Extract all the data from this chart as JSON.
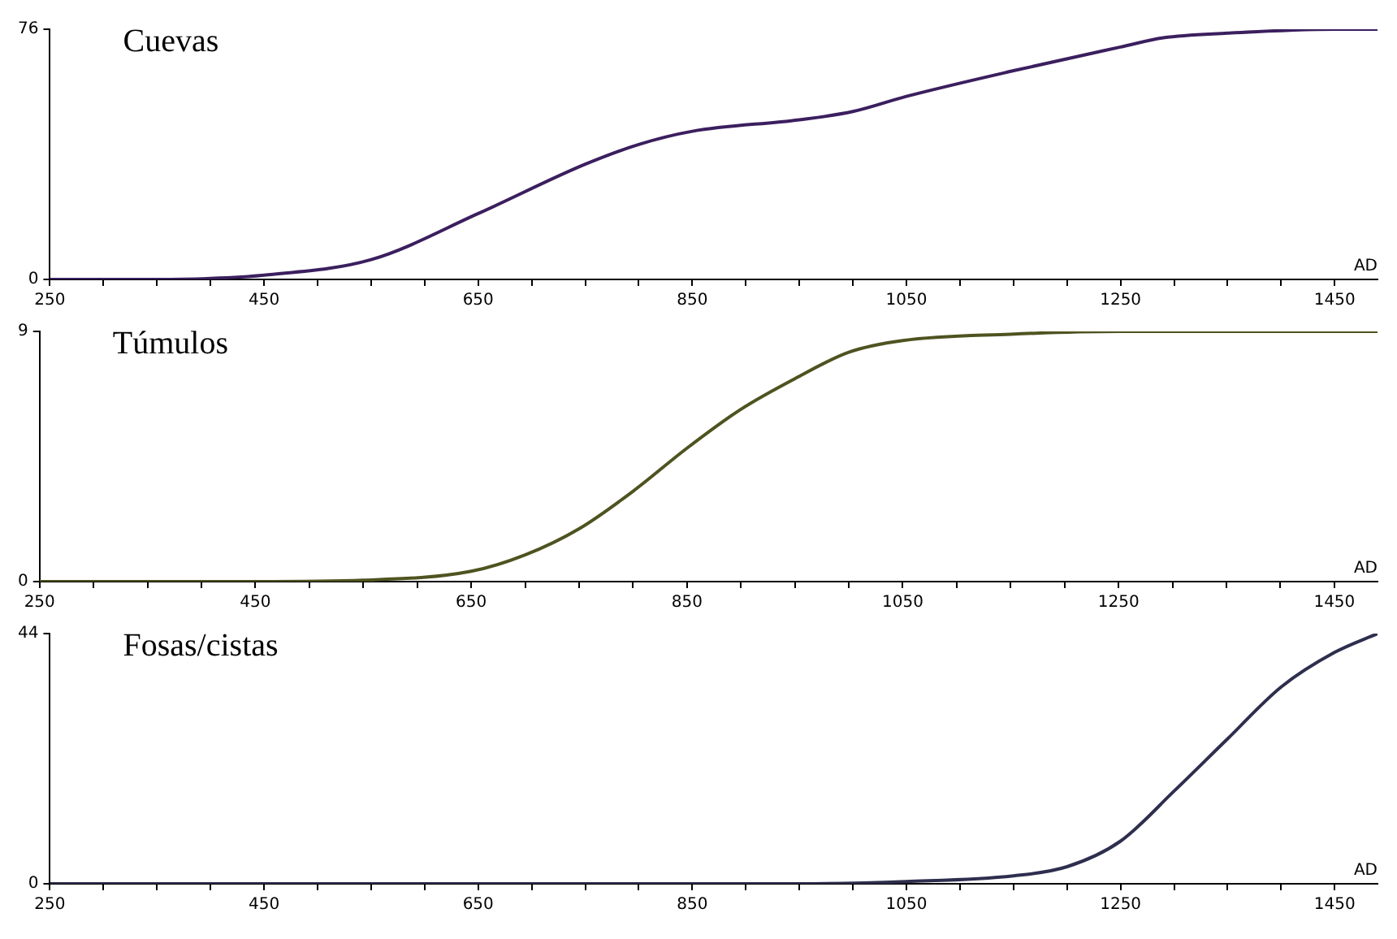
{
  "chart_data": [
    {
      "type": "line",
      "title": "Cuevas",
      "xlabel": "AD",
      "x": [
        250,
        350,
        400,
        450,
        550,
        650,
        750,
        800,
        850,
        950,
        1000,
        1050,
        1150,
        1250,
        1290,
        1350,
        1450,
        1490
      ],
      "series": [
        {
          "color": "#3b1f5e",
          "values": [
            0,
            0,
            0.3,
            1.3,
            6,
            20,
            35,
            41,
            45,
            48.5,
            51,
            55.6,
            63.4,
            70.6,
            73.4,
            74.8,
            76,
            76
          ]
        }
      ],
      "xlim": [
        250,
        1490
      ],
      "ylim": [
        0,
        76
      ],
      "yticks": [
        0,
        76
      ],
      "xticks": [
        250,
        {
          "value": 300,
          "label": null
        },
        {
          "value": 350,
          "label": null
        },
        {
          "value": 400,
          "label": null
        },
        450,
        {
          "value": 500,
          "label": null
        },
        {
          "value": 550,
          "label": null
        },
        {
          "value": 600,
          "label": null
        },
        650,
        {
          "value": 700,
          "label": null
        },
        {
          "value": 750,
          "label": null
        },
        {
          "value": 800,
          "label": null
        },
        850,
        {
          "value": 900,
          "label": null
        },
        {
          "value": 950,
          "label": null
        },
        {
          "value": 1000,
          "label": null
        },
        1050,
        {
          "value": 1100,
          "label": null
        },
        {
          "value": 1150,
          "label": null
        },
        {
          "value": 1200,
          "label": null
        },
        1250,
        {
          "value": 1300,
          "label": null
        },
        {
          "value": 1350,
          "label": null
        },
        {
          "value": 1400,
          "label": null
        },
        1450
      ],
      "grid": false,
      "legend": false,
      "marker": "none"
    },
    {
      "type": "line",
      "title": "Túmulos",
      "xlabel": "AD",
      "x": [
        250,
        450,
        550,
        650,
        700,
        750,
        800,
        850,
        900,
        950,
        1000,
        1050,
        1150,
        1250,
        1490
      ],
      "series": [
        {
          "color": "#4f5320",
          "values": [
            0,
            0,
            0.05,
            0.37,
            0.96,
            1.9,
            3.25,
            4.8,
            6.2,
            7.3,
            8.25,
            8.67,
            8.9,
            9,
            9
          ]
        }
      ],
      "xlim": [
        250,
        1490
      ],
      "ylim": [
        0,
        9
      ],
      "yticks": [
        0,
        9
      ],
      "xticks": [
        250,
        {
          "value": 300,
          "label": null
        },
        {
          "value": 350,
          "label": null
        },
        {
          "value": 400,
          "label": null
        },
        450,
        {
          "value": 500,
          "label": null
        },
        {
          "value": 550,
          "label": null
        },
        {
          "value": 600,
          "label": null
        },
        650,
        {
          "value": 700,
          "label": null
        },
        {
          "value": 750,
          "label": null
        },
        {
          "value": 800,
          "label": null
        },
        850,
        {
          "value": 900,
          "label": null
        },
        {
          "value": 950,
          "label": null
        },
        {
          "value": 1000,
          "label": null
        },
        1050,
        {
          "value": 1100,
          "label": null
        },
        {
          "value": 1150,
          "label": null
        },
        {
          "value": 1200,
          "label": null
        },
        1250,
        {
          "value": 1300,
          "label": null
        },
        {
          "value": 1350,
          "label": null
        },
        {
          "value": 1400,
          "label": null
        },
        1450
      ],
      "grid": false,
      "legend": false,
      "marker": "none"
    },
    {
      "type": "line",
      "title": "Fosas/cistas",
      "xlabel": "AD",
      "x": [
        250,
        950,
        1050,
        1150,
        1200,
        1250,
        1300,
        1350,
        1400,
        1450,
        1490
      ],
      "series": [
        {
          "color": "#2e2e4e",
          "values": [
            0,
            0,
            0.4,
            1.4,
            3,
            7.5,
            16.3,
            25.5,
            34.6,
            40.7,
            44
          ]
        }
      ],
      "xlim": [
        250,
        1490
      ],
      "ylim": [
        0,
        44
      ],
      "yticks": [
        0,
        44
      ],
      "xticks": [
        250,
        {
          "value": 300,
          "label": null
        },
        {
          "value": 350,
          "label": null
        },
        {
          "value": 400,
          "label": null
        },
        450,
        {
          "value": 500,
          "label": null
        },
        {
          "value": 550,
          "label": null
        },
        {
          "value": 600,
          "label": null
        },
        650,
        {
          "value": 700,
          "label": null
        },
        {
          "value": 750,
          "label": null
        },
        {
          "value": 800,
          "label": null
        },
        850,
        {
          "value": 900,
          "label": null
        },
        {
          "value": 950,
          "label": null
        },
        {
          "value": 1000,
          "label": null
        },
        1050,
        {
          "value": 1100,
          "label": null
        },
        {
          "value": 1150,
          "label": null
        },
        {
          "value": 1200,
          "label": null
        },
        1250,
        {
          "value": 1300,
          "label": null
        },
        {
          "value": 1350,
          "label": null
        },
        {
          "value": 1400,
          "label": null
        },
        1450
      ],
      "grid": false,
      "legend": false,
      "marker": "none"
    }
  ]
}
